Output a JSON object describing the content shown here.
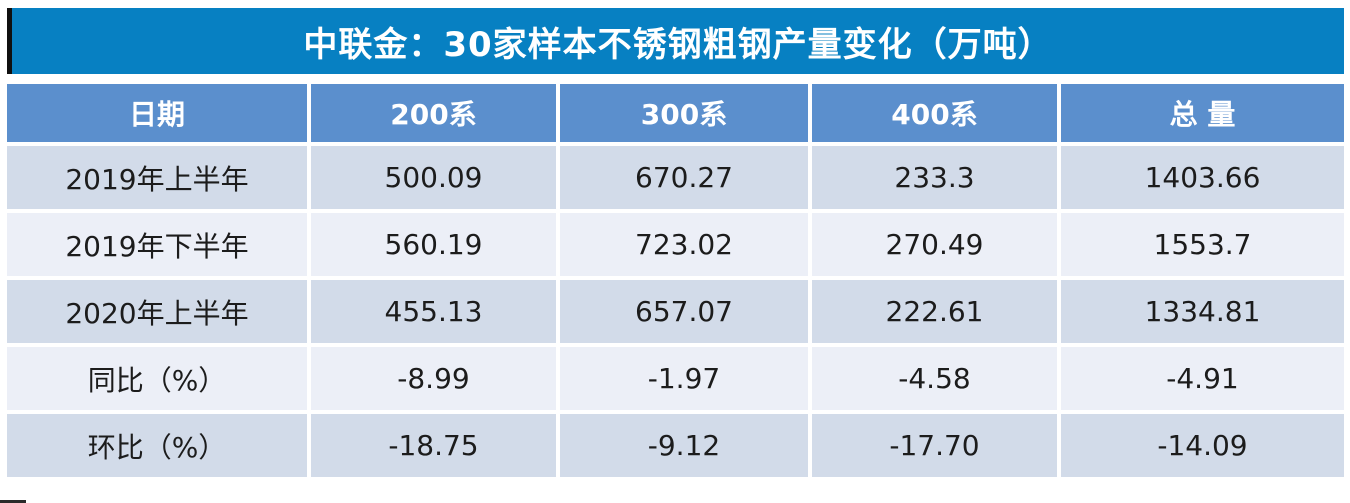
{
  "title": "中联金：30家样本不锈钢粗钢产量变化（万吨）",
  "colors": {
    "title_bg": "#0780c2",
    "header_bg": "#5b8fcd",
    "row_odd_bg": "#d2dbe9",
    "row_even_bg": "#eceff7",
    "header_text": "#ffffff",
    "cell_text": "#1c1c1c",
    "accent_black": "#101010"
  },
  "table": {
    "columns": [
      "日期",
      "200系",
      "300系",
      "400系",
      "总 量"
    ],
    "rows": [
      {
        "label": "2019年上半年",
        "values": [
          "500.09",
          "670.27",
          "233.3",
          "1403.66"
        ]
      },
      {
        "label": "2019年下半年",
        "values": [
          "560.19",
          "723.02",
          "270.49",
          "1553.7"
        ]
      },
      {
        "label": "2020年上半年",
        "values": [
          "455.13",
          "657.07",
          "222.61",
          "1334.81"
        ]
      },
      {
        "label": "同比（%）",
        "values": [
          "-8.99",
          "-1.97",
          "-4.58",
          "-4.91"
        ]
      },
      {
        "label": "环比（%）",
        "values": [
          "-18.75",
          "-9.12",
          "-17.70",
          "-14.09"
        ]
      }
    ]
  },
  "chart_data": {
    "type": "table",
    "title": "中联金：30家样本不锈钢粗钢产量变化（万吨）",
    "columns": [
      "日期",
      "200系",
      "300系",
      "400系",
      "总量"
    ],
    "rows": [
      {
        "日期": "2019年上半年",
        "200系": 500.09,
        "300系": 670.27,
        "400系": 233.3,
        "总量": 1403.66
      },
      {
        "日期": "2019年下半年",
        "200系": 560.19,
        "300系": 723.02,
        "400系": 270.49,
        "总量": 1553.7
      },
      {
        "日期": "2020年上半年",
        "200系": 455.13,
        "300系": 657.07,
        "400系": 222.61,
        "总量": 1334.81
      },
      {
        "日期": "同比（%）",
        "200系": -8.99,
        "300系": -1.97,
        "400系": -4.58,
        "总量": -4.91
      },
      {
        "日期": "环比（%）",
        "200系": -18.75,
        "300系": -9.12,
        "400系": -17.7,
        "总量": -14.09
      }
    ]
  }
}
